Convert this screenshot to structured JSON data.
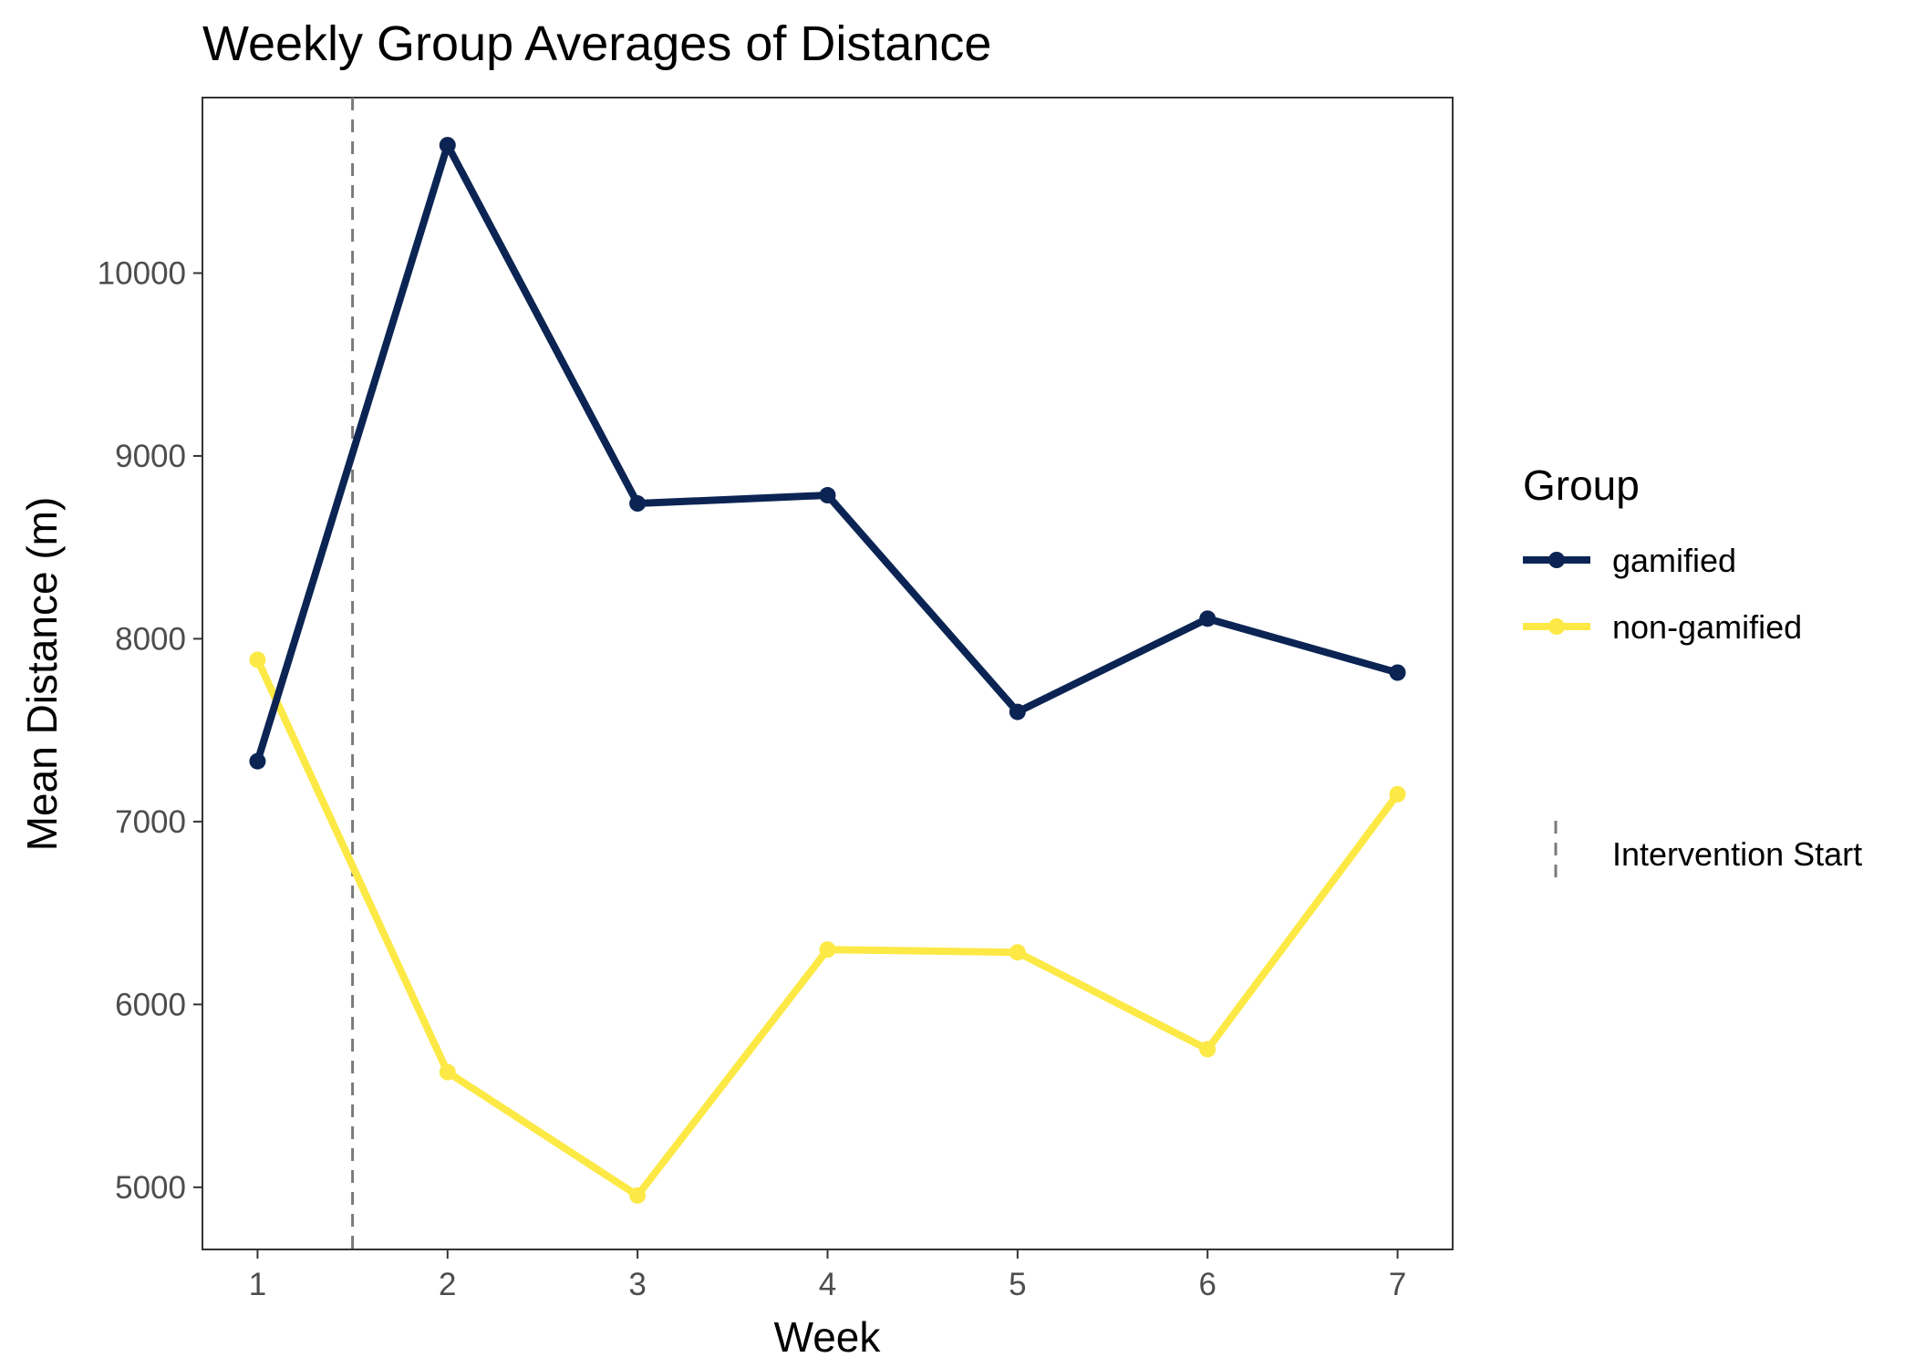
{
  "chart_data": {
    "type": "line",
    "title": "Weekly Group Averages of Distance",
    "xlabel": "Week",
    "ylabel": "Mean Distance (m)",
    "x": [
      1,
      2,
      3,
      4,
      5,
      6,
      7
    ],
    "xticks": [
      "1",
      "2",
      "3",
      "4",
      "5",
      "6",
      "7"
    ],
    "yticks": [
      "5000",
      "6000",
      "7000",
      "8000",
      "9000",
      "10000"
    ],
    "ylim": [
      4660,
      10960
    ],
    "xlim": [
      0.71,
      7.29
    ],
    "grid": false,
    "legend_position": "right",
    "legend_title": "Group",
    "series": [
      {
        "name": "gamified",
        "color": "#0b2453",
        "values": [
          7330,
          10700,
          8740,
          8785,
          7600,
          8110,
          7815
        ]
      },
      {
        "name": "non-gamified",
        "color": "#fde945",
        "values": [
          7885,
          5630,
          4955,
          6300,
          6285,
          5755,
          7150
        ]
      }
    ],
    "reference_line": {
      "x": 1.5,
      "label": "Intervention Start",
      "color": "#7a7a7a",
      "style": "dashed"
    }
  }
}
